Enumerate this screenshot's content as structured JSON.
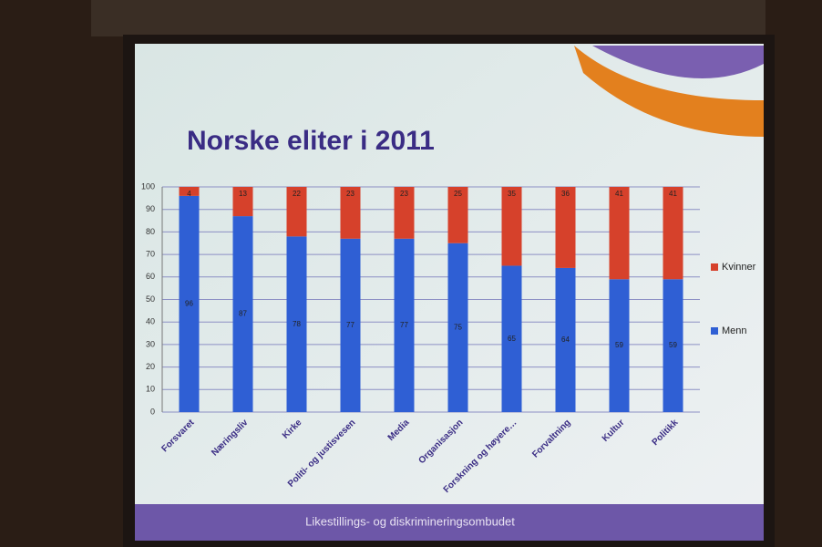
{
  "chart_data": {
    "type": "stacked_bar",
    "title": "Norske eliter i 2011",
    "categories": [
      "Forsvaret",
      "Næringsliv",
      "Kirke",
      "Politi- og justisvesen",
      "Media",
      "Organisasjon",
      "Forskning og høyere…",
      "Forvaltning",
      "Kultur",
      "Politikk"
    ],
    "series": [
      {
        "name": "Menn",
        "color": "#2f5fd4",
        "values": [
          96,
          87,
          78,
          77,
          77,
          75,
          65,
          64,
          59,
          59
        ]
      },
      {
        "name": "Kvinner",
        "color": "#d6412b",
        "values": [
          4,
          13,
          22,
          23,
          23,
          25,
          35,
          36,
          41,
          41
        ]
      }
    ],
    "ylim": [
      0,
      100
    ],
    "yticks": [
      0,
      10,
      20,
      30,
      40,
      50,
      60,
      70,
      80,
      90,
      100
    ],
    "grid": true,
    "legend": "right"
  },
  "footer": "Likestillings- og diskrimineringsombudet"
}
